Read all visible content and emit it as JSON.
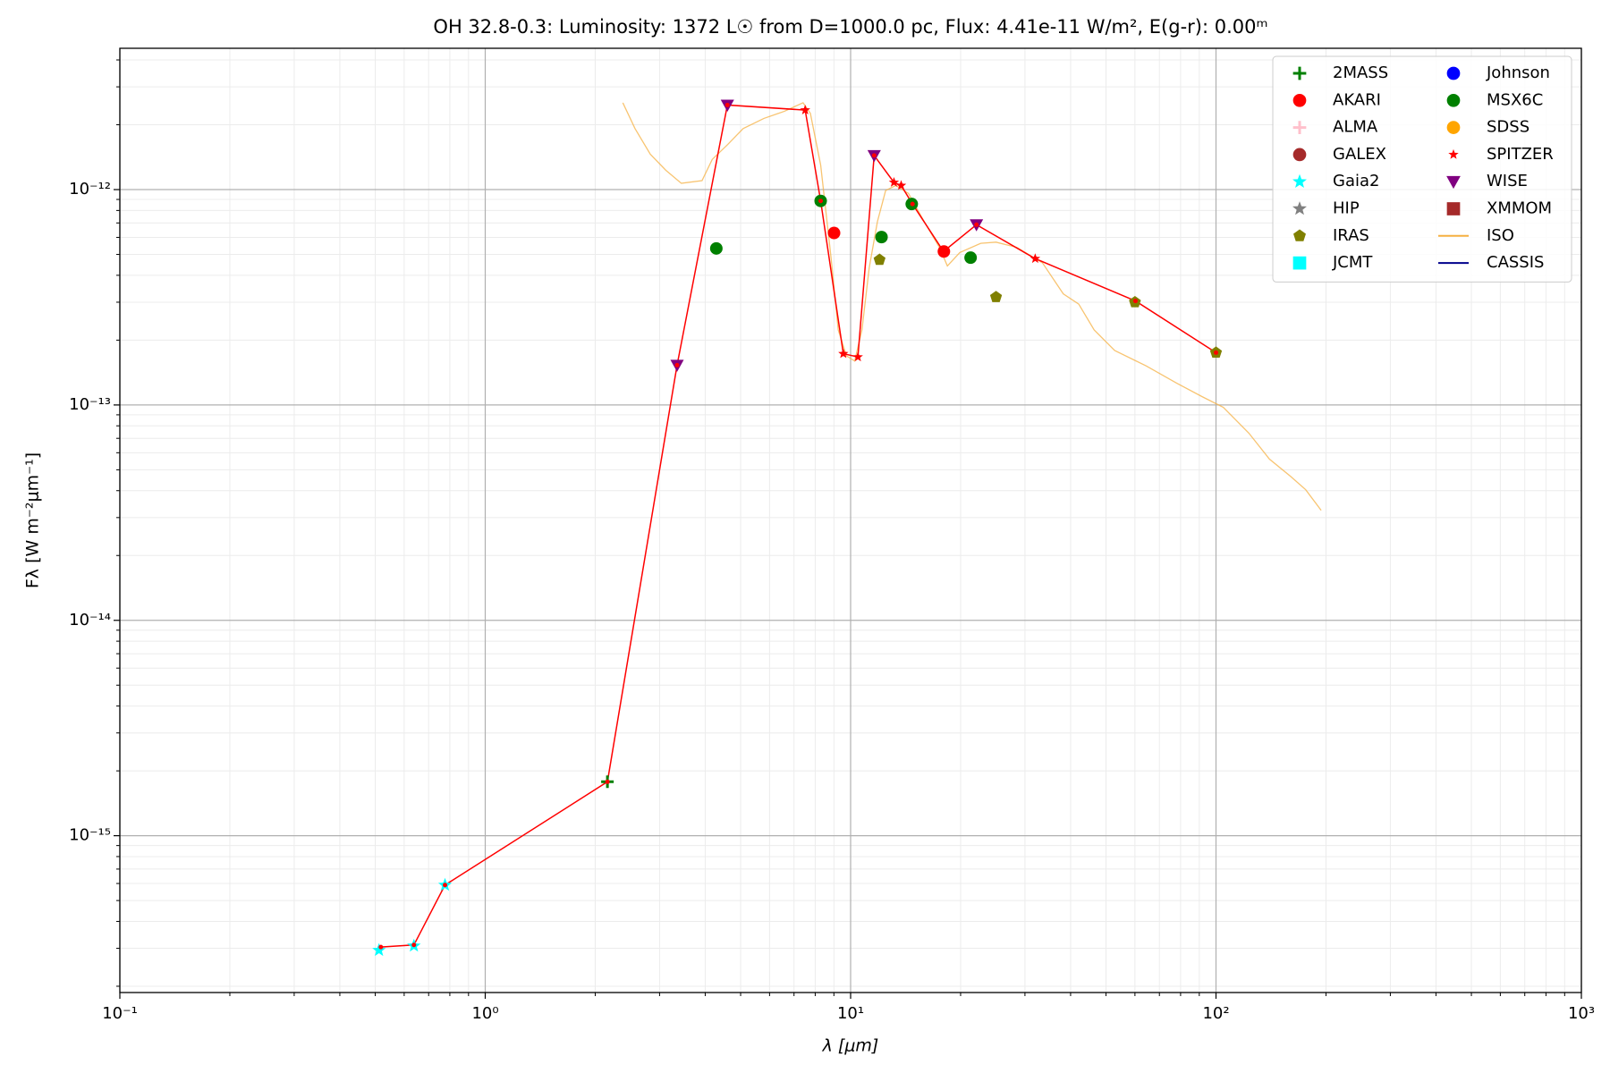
{
  "chart_data": {
    "type": "scatter",
    "title": "OH 32.8-0.3:  Luminosity: 1372 L☉ from D=1000.0 pc, Flux: 4.41e-11 W/m², E(g-r): 0.00ᵐ",
    "x_label": "λ [μm]",
    "y_label": "Fλ [W m⁻²μm⁻¹]",
    "xlog": true,
    "ylog": true,
    "grid": true,
    "minor_grid": true,
    "legend": "upper right",
    "legend_columns": 2,
    "xlim": [
      0.1,
      1000
    ],
    "ylim": [
      1.87e-16,
      4.53e-12
    ],
    "xticks": [
      {
        "value": 0.1,
        "label": "10⁻¹"
      },
      {
        "value": 1,
        "label": "10⁰"
      },
      {
        "value": 10,
        "label": "10¹"
      },
      {
        "value": 100,
        "label": "10²"
      },
      {
        "value": 1000,
        "label": "10³"
      }
    ],
    "yticks": [
      {
        "value": 1e-15,
        "label": "10⁻¹⁵"
      },
      {
        "value": 1e-14,
        "label": "10⁻¹⁴"
      },
      {
        "value": 1e-13,
        "label": "10⁻¹³"
      },
      {
        "value": 1e-12,
        "label": "10⁻¹²"
      }
    ],
    "line": {
      "color": "#ff0000",
      "x": [
        0.518,
        0.638,
        0.776,
        2.16,
        3.35,
        4.6,
        7.51,
        8.28,
        9.55,
        10.47,
        11.6,
        13.14,
        13.75,
        14.77,
        17.96,
        22.1,
        32.0,
        60.2,
        100
      ],
      "values": [
        3.04e-16,
        3.11e-16,
        5.9e-16,
        1.78e-15,
        1.53e-13,
        2.47e-12,
        2.34e-12,
        8.86e-13,
        1.73e-13,
        1.67e-13,
        1.44e-12,
        1.08e-12,
        1.045e-12,
        8.57e-13,
        5.16e-13,
        6.87e-13,
        4.78e-13,
        3.04e-13,
        1.75e-13
      ]
    },
    "series": [
      {
        "name": "2MASS",
        "color": "#008000",
        "marker": "plus",
        "x": [
          2.16
        ],
        "values": [
          1.78e-15
        ]
      },
      {
        "name": "AKARI",
        "color": "#ff0000",
        "marker": "circle",
        "x": [
          9.01,
          18.0
        ],
        "values": [
          6.29e-13,
          5.16e-13
        ]
      },
      {
        "name": "ALMA",
        "color": "#ffc0cb",
        "marker": "plus",
        "x": [],
        "values": []
      },
      {
        "name": "GALEX",
        "color": "#a52a2a",
        "marker": "circle",
        "x": [],
        "values": []
      },
      {
        "name": "Gaia2",
        "color": "#00ffff",
        "marker": "star",
        "x": [
          0.512,
          0.638,
          0.776
        ],
        "values": [
          2.94e-16,
          3.08e-16,
          5.9e-16
        ]
      },
      {
        "name": "HIP",
        "color": "#808080",
        "marker": "star",
        "x": [],
        "values": []
      },
      {
        "name": "IRAS",
        "color": "#808000",
        "marker": "pentagon",
        "x": [
          12.0,
          25.0,
          60.0,
          100
        ],
        "values": [
          4.72e-13,
          3.17e-13,
          3e-13,
          1.75e-13
        ]
      },
      {
        "name": "JCMT",
        "color": "#00ffff",
        "marker": "square",
        "x": [],
        "values": []
      },
      {
        "name": "Johnson",
        "color": "#0000ff",
        "marker": "circle",
        "x": [],
        "values": []
      },
      {
        "name": "MSX6C",
        "color": "#008000",
        "marker": "circle",
        "x": [
          4.29,
          8.28,
          12.15,
          14.7,
          21.3
        ],
        "values": [
          5.33e-13,
          8.86e-13,
          6.02e-13,
          8.57e-13,
          4.83e-13
        ]
      },
      {
        "name": "SDSS",
        "color": "#ffa500",
        "marker": "circle",
        "x": [],
        "values": []
      },
      {
        "name": "SPITZER",
        "color": "#ff0000",
        "marker": "smallstar",
        "x": [
          7.51,
          9.55,
          10.47,
          13.14,
          13.75,
          32.0
        ],
        "values": [
          2.34e-12,
          1.73e-13,
          1.67e-13,
          1.08e-12,
          1.045e-12,
          4.78e-13
        ]
      },
      {
        "name": "WISE",
        "color": "#800080",
        "marker": "triangle-down",
        "x": [
          3.35,
          4.6,
          11.6,
          22.1
        ],
        "values": [
          1.53e-13,
          2.47e-12,
          1.44e-12,
          6.87e-13
        ]
      },
      {
        "name": "XMMOM",
        "color": "#a52a2a",
        "marker": "square",
        "x": [],
        "values": []
      },
      {
        "name": "ISO",
        "color": "#f5b041",
        "marker": "line",
        "x": [
          2.38,
          2.57,
          2.83,
          3.12,
          3.44,
          3.92,
          4.18,
          4.61,
          5.08,
          5.79,
          6.59,
          7.41,
          7.76,
          8.28,
          8.84,
          9.25,
          9.74,
          10.26,
          10.74,
          11.24,
          11.84,
          12.47,
          13.3,
          14.4,
          15.9,
          17.5,
          18.4,
          19.9,
          22.7,
          25.0,
          28.5,
          33.5,
          38.2,
          42.1,
          46.4,
          52.8,
          64.3,
          78.2,
          91.9,
          104.7,
          123,
          140,
          160,
          176,
          194
        ],
        "values": [
          2.53e-12,
          1.92e-12,
          1.46e-12,
          1.23e-12,
          1.07e-12,
          1.1e-12,
          1.38e-12,
          1.62e-12,
          1.92e-12,
          2.14e-12,
          2.31e-12,
          2.53e-12,
          2.26e-12,
          1.3e-12,
          4.83e-13,
          2.23e-13,
          1.69e-13,
          1.6e-13,
          2.23e-13,
          4.32e-13,
          7.1e-13,
          9.9e-13,
          1.045e-12,
          9.6e-13,
          7.1e-13,
          5.39e-13,
          4.42e-13,
          5.1e-13,
          5.63e-13,
          5.7e-13,
          5.39e-13,
          4.57e-13,
          3.28e-13,
          2.94e-13,
          2.23e-13,
          1.79e-13,
          1.52e-13,
          1.26e-13,
          1.09e-13,
          9.75e-14,
          7.4e-14,
          5.61e-14,
          4.66e-14,
          4.04e-14,
          3.24e-14
        ]
      },
      {
        "name": "CASSIS",
        "color": "#00008b",
        "marker": "line",
        "x": [],
        "values": []
      }
    ]
  }
}
